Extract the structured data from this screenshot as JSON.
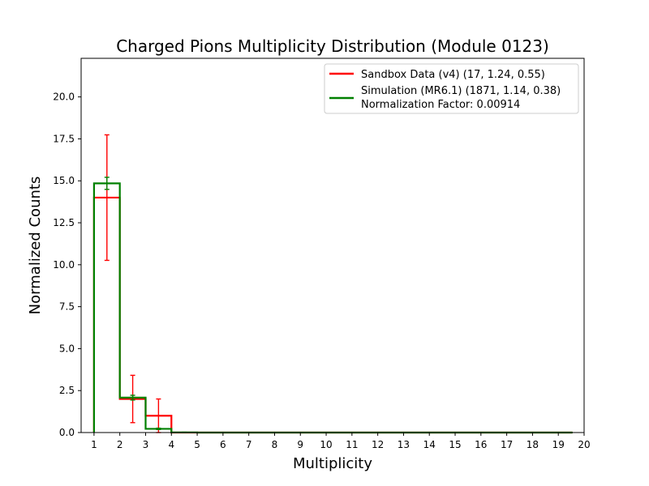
{
  "chart_data": {
    "type": "step",
    "title": "Charged Pions Multiplicity Distribution (Module 0123)",
    "xlabel": "Multiplicity",
    "ylabel": "Normalized Counts",
    "xlim": [
      0.5,
      20
    ],
    "ylim": [
      0,
      22.3
    ],
    "xticks": [
      1,
      2,
      3,
      4,
      5,
      6,
      7,
      8,
      9,
      10,
      11,
      12,
      13,
      14,
      15,
      16,
      17,
      18,
      19,
      20
    ],
    "yticks": [
      "0.0",
      "2.5",
      "5.0",
      "7.5",
      "10.0",
      "12.5",
      "15.0",
      "17.5",
      "20.0"
    ],
    "bin_edges": [
      1,
      2,
      3,
      4,
      5,
      6,
      7,
      8,
      9,
      10,
      11,
      12,
      13,
      14,
      15,
      16,
      17,
      18,
      19,
      19.55
    ],
    "grid": false,
    "legend_position": "top-right",
    "series": [
      {
        "name": "Sandbox Data (v4) (17, 1.24, 0.55)",
        "color": "#ff0000",
        "style": "step-with-errorbars",
        "values": [
          14.0,
          2.0,
          1.0,
          0,
          0,
          0,
          0,
          0,
          0,
          0,
          0,
          0,
          0,
          0,
          0,
          0,
          0,
          0,
          0
        ],
        "errors": [
          3.74,
          1.41,
          1.0,
          0,
          0,
          0,
          0,
          0,
          0,
          0,
          0,
          0,
          0,
          0,
          0,
          0,
          0,
          0,
          0
        ]
      },
      {
        "name": "Simulation (MR6.1) (1871, 1.14, 0.38)",
        "color": "#008000",
        "style": "step-with-errorbars",
        "values": [
          14.85,
          2.08,
          0.22,
          0.01,
          0,
          0,
          0,
          0,
          0,
          0,
          0,
          0,
          0,
          0,
          0,
          0,
          0,
          0,
          0
        ],
        "errors": [
          0.36,
          0.14,
          0.04,
          0.01,
          0,
          0,
          0,
          0,
          0,
          0,
          0,
          0,
          0,
          0,
          0,
          0,
          0,
          0,
          0
        ]
      }
    ],
    "legend_extra": "Normalization Factor: 0.00914"
  }
}
